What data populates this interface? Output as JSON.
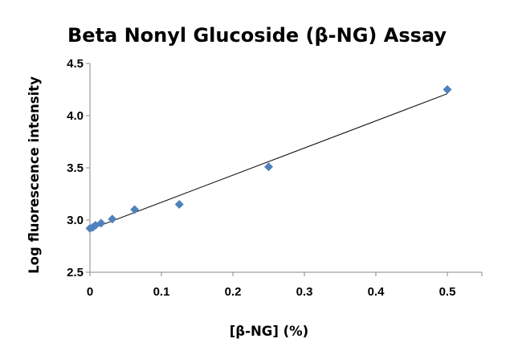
{
  "chart_data": {
    "type": "scatter",
    "title": "Beta Nonyl Glucoside (β-NG) Assay",
    "xlabel": "[β-NG] (%)",
    "ylabel": "Log fluorescence intensity",
    "xlim": [
      0,
      0.5
    ],
    "ylim": [
      2.5,
      4.5
    ],
    "x_ticks": [
      "0",
      "0.1",
      "0.2",
      "0.3",
      "0.4",
      "0.5"
    ],
    "y_ticks": [
      "2.5",
      "3.0",
      "3.5",
      "4.0",
      "4.5"
    ],
    "grid": false,
    "legend": "none",
    "marker": "diamond",
    "marker_color": "#4F81BD",
    "series": [
      {
        "x": [
          0,
          0.0039,
          0.0078,
          0.0156,
          0.03125,
          0.0625,
          0.125,
          0.25,
          0.5
        ],
        "y": [
          2.92,
          2.93,
          2.95,
          2.97,
          3.01,
          3.1,
          3.15,
          3.51,
          4.25
        ]
      }
    ],
    "trendline": {
      "type": "linear",
      "color": "#000000",
      "x": [
        0,
        0.5
      ],
      "y": [
        2.91,
        4.21
      ]
    }
  }
}
